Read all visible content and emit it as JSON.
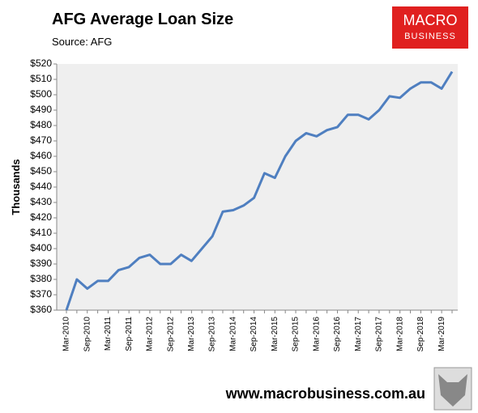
{
  "chart_data": {
    "type": "line",
    "title": "AFG Average Loan Size",
    "subtitle": "Source: AFG",
    "y_label": "Thousands",
    "categories": [
      "Mar-2010",
      null,
      "Sep-2010",
      null,
      "Mar-2011",
      null,
      "Sep-2011",
      null,
      "Mar-2012",
      null,
      "Sep-2012",
      null,
      "Mar-2013",
      null,
      "Sep-2013",
      null,
      "Mar-2014",
      null,
      "Sep-2014",
      null,
      "Mar-2015",
      null,
      "Sep-2015",
      null,
      "Mar-2016",
      null,
      "Sep-2016",
      null,
      "Mar-2017",
      null,
      "Sep-2017",
      null,
      "Mar-2018",
      null,
      "Sep-2018",
      null,
      "Mar-2019",
      null
    ],
    "series": [
      {
        "name": "AFG Average Loan Size",
        "color": "#4f7fc0",
        "values": [
          360,
          380,
          374,
          379,
          379,
          386,
          388,
          394,
          396,
          390,
          390,
          396,
          392,
          400,
          408,
          424,
          425,
          428,
          433,
          449,
          446,
          460,
          470,
          475,
          473,
          477,
          479,
          487,
          487,
          484,
          490,
          499,
          498,
          504,
          508,
          508,
          504,
          515
        ]
      }
    ],
    "ylim": [
      360,
      520
    ],
    "yticks": [
      {
        "value": 360,
        "label": "$360"
      },
      {
        "value": 370,
        "label": "$370"
      },
      {
        "value": 380,
        "label": "$380"
      },
      {
        "value": 390,
        "label": "$390"
      },
      {
        "value": 400,
        "label": "$400"
      },
      {
        "value": 410,
        "label": "$410"
      },
      {
        "value": 420,
        "label": "$420"
      },
      {
        "value": 430,
        "label": "$430"
      },
      {
        "value": 440,
        "label": "$440"
      },
      {
        "value": 450,
        "label": "$450"
      },
      {
        "value": 460,
        "label": "$460"
      },
      {
        "value": 470,
        "label": "$470"
      },
      {
        "value": 480,
        "label": "$480"
      },
      {
        "value": 490,
        "label": "$490"
      },
      {
        "value": 500,
        "label": "$500"
      },
      {
        "value": 510,
        "label": "$510"
      },
      {
        "value": 520,
        "label": "$520"
      }
    ],
    "grid": false,
    "plot_background": "#efefef"
  },
  "logo": {
    "line1": "MACRO",
    "line2": "BUSINESS"
  },
  "footer": "www.macrobusiness.com.au"
}
